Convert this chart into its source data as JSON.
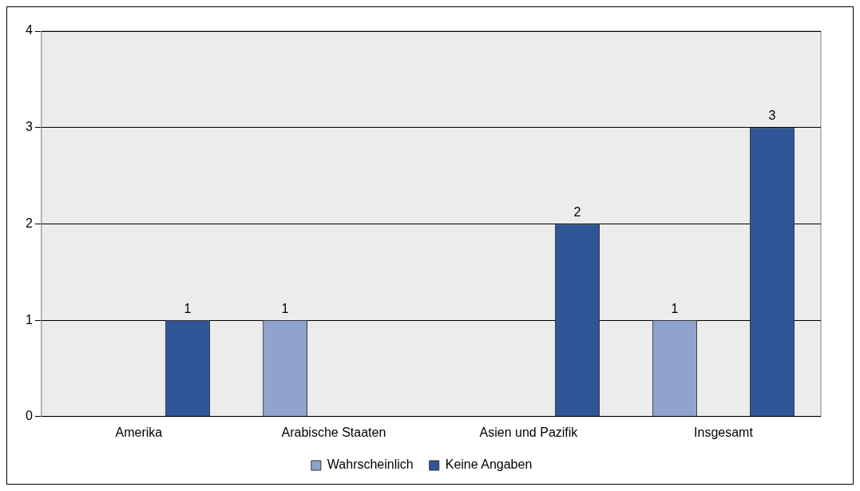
{
  "chart_data": {
    "type": "bar",
    "categories": [
      "Amerika",
      "Arabische Staaten",
      "Asien und Pazifik",
      "Insgesamt"
    ],
    "series": [
      {
        "name": "Wahrscheinlich",
        "color": "#8fa3cc",
        "values": [
          null,
          1,
          null,
          1
        ]
      },
      {
        "name": "Keine Angaben",
        "color": "#2f5597",
        "values": [
          1,
          null,
          2,
          3
        ]
      }
    ],
    "ylim": [
      0,
      4
    ],
    "yticks": [
      0,
      1,
      2,
      3,
      4
    ],
    "grid": "y",
    "legend": "bottom",
    "data_labels": true
  }
}
